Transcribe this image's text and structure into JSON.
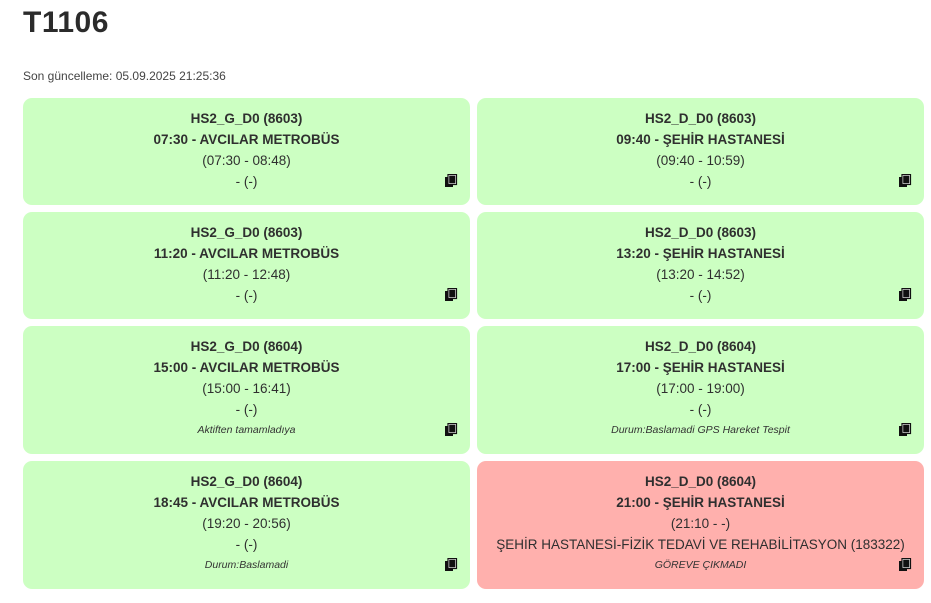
{
  "page": {
    "title": "T1106",
    "last_update": "Son güncelleme: 05.09.2025 21:25:36"
  },
  "colors": {
    "ok_bg": "#ccffc2",
    "alert_bg": "#ffb0ad"
  },
  "cards": [
    {
      "route": "HS2_G_D0 (8603)",
      "departure": "07:30 - AVCILAR METROBÜS",
      "times": "(07:30 - 08:48)",
      "driver": "- (-)",
      "status": "",
      "state": "ok",
      "icon": "copy-icon"
    },
    {
      "route": "HS2_D_D0 (8603)",
      "departure": "09:40 - ŞEHİR HASTANESİ",
      "times": "(09:40 - 10:59)",
      "driver": "- (-)",
      "status": "",
      "state": "ok",
      "icon": "copy-icon"
    },
    {
      "route": "HS2_G_D0 (8603)",
      "departure": "11:20 - AVCILAR METROBÜS",
      "times": "(11:20 - 12:48)",
      "driver": "- (-)",
      "status": "",
      "state": "ok",
      "icon": "copy-icon"
    },
    {
      "route": "HS2_D_D0 (8603)",
      "departure": "13:20 - ŞEHİR HASTANESİ",
      "times": "(13:20 - 14:52)",
      "driver": "- (-)",
      "status": "",
      "state": "ok",
      "icon": "copy-icon"
    },
    {
      "route": "HS2_G_D0 (8604)",
      "departure": "15:00 - AVCILAR METROBÜS",
      "times": "(15:00 - 16:41)",
      "driver": "- (-)",
      "status": "Aktiften tamamladıya",
      "state": "ok",
      "icon": "copy-icon"
    },
    {
      "route": "HS2_D_D0 (8604)",
      "departure": "17:00 - ŞEHİR HASTANESİ",
      "times": "(17:00 - 19:00)",
      "driver": "- (-)",
      "status": "Durum:Baslamadi GPS Hareket Tespit",
      "state": "ok",
      "icon": "copy-icon"
    },
    {
      "route": "HS2_G_D0 (8604)",
      "departure": "18:45 - AVCILAR METROBÜS",
      "times": "(19:20 - 20:56)",
      "driver": "- (-)",
      "status": "Durum:Baslamadi",
      "state": "ok",
      "icon": "copy-icon"
    },
    {
      "route": "HS2_D_D0 (8604)",
      "departure": "21:00 - ŞEHİR HASTANESİ",
      "times": "(21:10 - -)",
      "driver": "ŞEHİR HASTANESİ-FİZİK TEDAVİ VE REHABİLİTASYON (183322)",
      "status": "GÖREVE ÇIKMADI",
      "state": "alert",
      "icon": "copy-icon"
    }
  ]
}
